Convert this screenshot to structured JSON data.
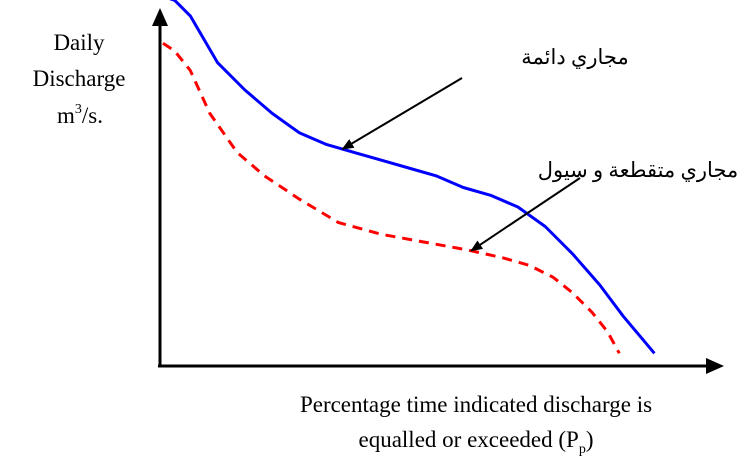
{
  "chart_data": {
    "type": "line",
    "ylabel_lines": [
      "Daily",
      "Discharge"
    ],
    "ylabel_unit_base": "m",
    "ylabel_unit_exp": "3",
    "ylabel_unit_tail": "/s.",
    "xlabel_line1": "Percentage time indicated discharge is",
    "xlabel_line2_main": "equalled or exceeded (P",
    "xlabel_line2_sub": "p",
    "xlabel_line2_tail": ")",
    "series": [
      {
        "name": "مجاري دائمة",
        "color": "#0000ff",
        "style": "solid",
        "points": [
          [
            0,
            94
          ],
          [
            3,
            93
          ],
          [
            7,
            89
          ],
          [
            14,
            77
          ],
          [
            21,
            70
          ],
          [
            28,
            64
          ],
          [
            35,
            59
          ],
          [
            42,
            56
          ],
          [
            49,
            54
          ],
          [
            56,
            52
          ],
          [
            63,
            50
          ],
          [
            70,
            48
          ],
          [
            77,
            45
          ],
          [
            84,
            43
          ],
          [
            91,
            40
          ],
          [
            98,
            35
          ],
          [
            105,
            28
          ],
          [
            112,
            20
          ],
          [
            118,
            12
          ],
          [
            126,
            2.5
          ]
        ]
      },
      {
        "name": "مجاري متقطعة و سيول",
        "color": "#ff0000",
        "style": "dashed",
        "points": [
          [
            0,
            82
          ],
          [
            3,
            80
          ],
          [
            7,
            75
          ],
          [
            12,
            64
          ],
          [
            19,
            54
          ],
          [
            26,
            48
          ],
          [
            35,
            42
          ],
          [
            45,
            36
          ],
          [
            56,
            33
          ],
          [
            67,
            31
          ],
          [
            78,
            29
          ],
          [
            87,
            27
          ],
          [
            94,
            25
          ],
          [
            100,
            22
          ],
          [
            105,
            18
          ],
          [
            110,
            13
          ],
          [
            114,
            8
          ],
          [
            117,
            2.5
          ]
        ]
      }
    ],
    "annotations": [
      {
        "text": "مجاري دائمة",
        "series": 0,
        "at_x": 46
      },
      {
        "text": "مجاري متقطعة و سيول",
        "series": 1,
        "at_x": 79
      }
    ]
  }
}
